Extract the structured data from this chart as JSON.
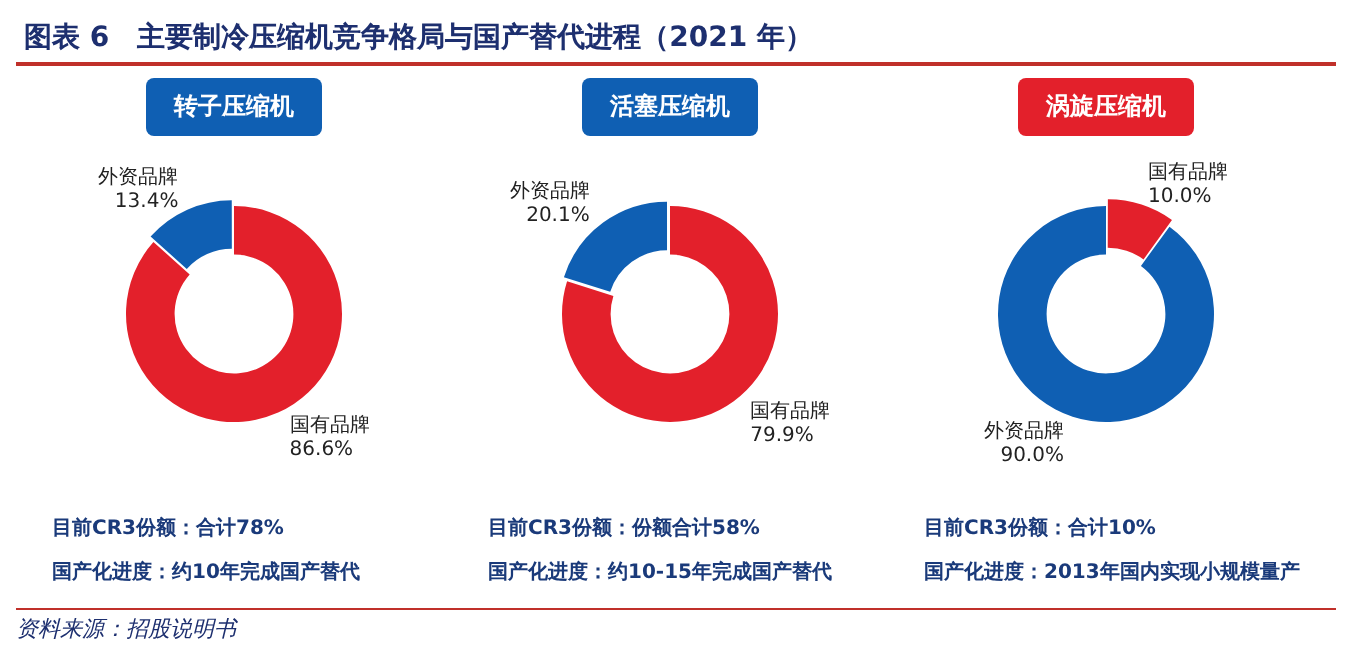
{
  "chart_data": [
    {
      "type": "other",
      "title": "图表 6　主要制冷压缩机竞争格局与国产替代进程（2021 年）",
      "annotations": [
        "资料来源：招股说明书"
      ]
    },
    {
      "type": "donut",
      "title": "转子压缩机",
      "categories": [
        "外资品牌",
        "国有品牌"
      ],
      "values": [
        13.4,
        86.6
      ],
      "colors": [
        "#0f5fb3",
        "#e3202b"
      ],
      "value_labels": [
        "13.4%",
        "86.6%"
      ],
      "annotations": [
        "目前CR3份额：合计78%",
        "国产化进度：约10年完成国产替代"
      ]
    },
    {
      "type": "donut",
      "title": "活塞压缩机",
      "categories": [
        "外资品牌",
        "国有品牌"
      ],
      "values": [
        20.1,
        79.9
      ],
      "colors": [
        "#0f5fb3",
        "#e3202b"
      ],
      "value_labels": [
        "20.1%",
        "79.9%"
      ],
      "annotations": [
        "目前CR3份额：份额合计58%",
        "国产化进度：约10-15年完成国产替代"
      ]
    },
    {
      "type": "donut",
      "title": "涡旋压缩机",
      "categories": [
        "外资品牌",
        "国有品牌"
      ],
      "values": [
        90,
        10
      ],
      "colors": [
        "#0f5fb3",
        "#e3202b"
      ],
      "value_labels": [
        "90.0%",
        "10.0%"
      ],
      "annotations": [
        "目前CR3份额：合计10%",
        "国产化进度：2013年国内实现小规模量产"
      ]
    }
  ]
}
